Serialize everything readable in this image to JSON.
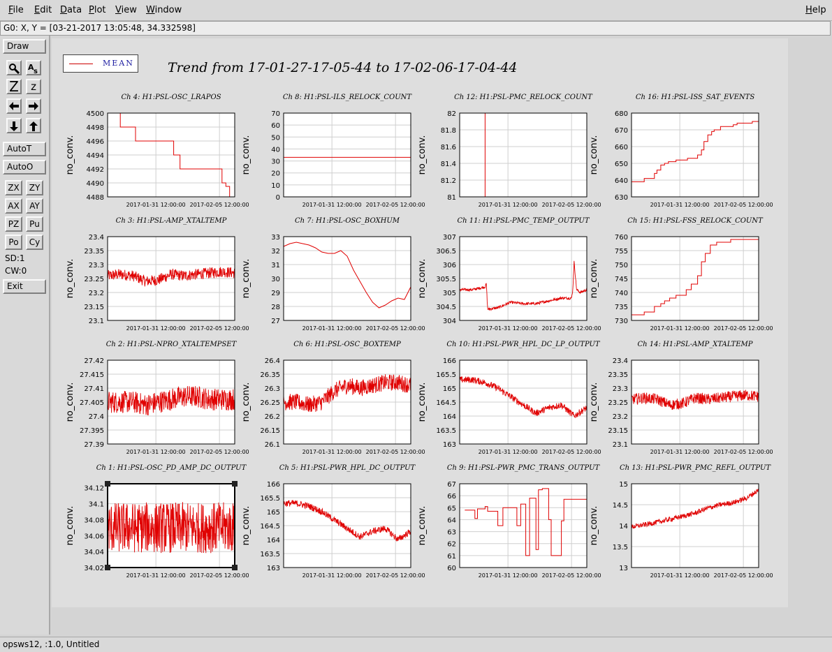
{
  "menubar": {
    "items": [
      {
        "label": "File",
        "ul": "F"
      },
      {
        "label": "Edit",
        "ul": "E"
      },
      {
        "label": "Data",
        "ul": "D"
      },
      {
        "label": "Plot",
        "ul": "P"
      },
      {
        "label": "View",
        "ul": "V"
      },
      {
        "label": "Window",
        "ul": "W"
      }
    ],
    "help": "Help"
  },
  "coord_readout": "G0: X, Y = [03-21-2017 13:05:48, 34.332598]",
  "toolbar": {
    "draw": "Draw",
    "autot": "AutoT",
    "autoo": "AutoO",
    "zx": "ZX",
    "zy": "ZY",
    "ax": "AX",
    "ay": "AY",
    "pz": "PZ",
    "pu": "Pu",
    "po": "Po",
    "cy": "Cy",
    "zoom_big": "Z",
    "zoom_small": "z",
    "sd": "SD:1",
    "cw": "CW:0",
    "exit": "Exit"
  },
  "legend": {
    "label": "MEAN",
    "color": "#cc0000"
  },
  "title": "Trend from 17-01-27-17-05-44 to 17-02-06-17-04-44",
  "statusbar": "opsws12, :1.0, Untitled",
  "chart_data": [
    {
      "type": "line",
      "title": "Ch 4: H1:PSL-OSC_LRAPOS",
      "ylabel": "no_conv.",
      "xticks": [
        "2017-01-31 12:00:00",
        "2017-02-05 12:00:00"
      ],
      "yticks": [
        "4488",
        "4490",
        "4492",
        "4494",
        "4496",
        "4498",
        "4500"
      ],
      "ylim": [
        4488,
        4500
      ],
      "series": [
        {
          "x": [
            0.08,
            0.1,
            0.1,
            0.22,
            0.22,
            0.52,
            0.52,
            0.57,
            0.57,
            0.9,
            0.9,
            0.93,
            0.93,
            0.96,
            0.96
          ],
          "y": [
            4500,
            4500,
            4498,
            4498,
            4496,
            4496,
            4494,
            4494,
            4492,
            4492,
            4490,
            4490,
            4489.5,
            4489.5,
            4488
          ]
        }
      ]
    },
    {
      "type": "line",
      "title": "Ch 8: H1:PSL-ILS_RELOCK_COUNT",
      "ylabel": "no_conv.",
      "xticks": [
        "2017-01-31 12:00:00",
        "2017-02-05 12:00:00"
      ],
      "yticks": [
        "0",
        "10",
        "20",
        "30",
        "40",
        "50",
        "60",
        "70"
      ],
      "ylim": [
        0,
        70
      ],
      "series": [
        {
          "x": [
            0,
            1
          ],
          "y": [
            33,
            33
          ]
        }
      ]
    },
    {
      "type": "line",
      "title": "Ch 12: H1:PSL-PMC_RELOCK_COUNT",
      "ylabel": "no_conv.",
      "xticks": [
        "2017-01-31 12:00:00",
        "2017-02-05 12:00:00"
      ],
      "yticks": [
        "81",
        "81.2",
        "81.4",
        "81.6",
        "81.8",
        "82"
      ],
      "ylim": [
        81,
        82
      ],
      "series": [
        {
          "x": [
            0.2,
            0.2
          ],
          "y": [
            81,
            82
          ]
        }
      ]
    },
    {
      "type": "line",
      "title": "Ch 16: H1:PSL-ISS_SAT_EVENTS",
      "ylabel": "no_conv.",
      "xticks": [
        "2017-01-31 12:00:00",
        "2017-02-05 12:00:00"
      ],
      "yticks": [
        "630",
        "640",
        "650",
        "660",
        "670",
        "680"
      ],
      "ylim": [
        630,
        680
      ],
      "series": [
        {
          "x": [
            0,
            0.1,
            0.1,
            0.18,
            0.18,
            0.2,
            0.2,
            0.23,
            0.23,
            0.26,
            0.26,
            0.29,
            0.29,
            0.35,
            0.35,
            0.44,
            0.44,
            0.52,
            0.52,
            0.55,
            0.55,
            0.57,
            0.57,
            0.6,
            0.6,
            0.63,
            0.63,
            0.65,
            0.65,
            0.7,
            0.7,
            0.8,
            0.8,
            0.83,
            0.83,
            0.95,
            0.95,
            1
          ],
          "y": [
            639,
            639,
            641,
            641,
            644,
            644,
            646,
            646,
            649,
            649,
            650,
            650,
            651,
            651,
            652,
            652,
            653,
            653,
            655,
            655,
            658,
            658,
            663,
            663,
            667,
            667,
            669,
            669,
            670,
            670,
            672,
            672,
            673,
            673,
            674,
            674,
            675,
            675
          ]
        }
      ]
    },
    {
      "type": "line",
      "title": "Ch 3: H1:PSL-AMP_XTALTEMP",
      "ylabel": "no_conv.",
      "xticks": [
        "2017-01-31 12:00:00",
        "2017-02-05 12:00:00"
      ],
      "yticks": [
        "23.1",
        "23.15",
        "23.2",
        "23.25",
        "23.3",
        "23.35",
        "23.4"
      ],
      "ylim": [
        23.1,
        23.4
      ],
      "series": [
        {
          "x": [
            0,
            0.1,
            0.2,
            0.3,
            0.4,
            0.5,
            0.6,
            0.7,
            0.8,
            0.9,
            1
          ],
          "y": [
            23.26,
            23.265,
            23.26,
            23.24,
            23.245,
            23.265,
            23.26,
            23.265,
            23.27,
            23.275,
            23.27
          ],
          "noise": 0.02
        }
      ]
    },
    {
      "type": "line",
      "title": "Ch 7: H1:PSL-OSC_BOXHUM",
      "ylabel": "no_conv.",
      "xticks": [
        "2017-01-31 12:00:00",
        "2017-02-05 12:00:00"
      ],
      "yticks": [
        "27",
        "28",
        "29",
        "30",
        "31",
        "32",
        "33"
      ],
      "ylim": [
        27,
        33
      ],
      "series": [
        {
          "x": [
            0,
            0.05,
            0.1,
            0.15,
            0.2,
            0.25,
            0.3,
            0.35,
            0.4,
            0.45,
            0.5,
            0.55,
            0.6,
            0.65,
            0.7,
            0.75,
            0.8,
            0.85,
            0.9,
            0.95,
            1
          ],
          "y": [
            32.3,
            32.5,
            32.6,
            32.5,
            32.4,
            32.2,
            31.9,
            31.8,
            31.8,
            32.0,
            31.6,
            30.6,
            29.8,
            29.0,
            28.3,
            27.9,
            28.1,
            28.4,
            28.6,
            28.5,
            29.4
          ]
        }
      ]
    },
    {
      "type": "line",
      "title": "Ch 11: H1:PSL-PMC_TEMP_OUTPUT",
      "ylabel": "no_conv.",
      "xticks": [
        "2017-01-31 12:00:00",
        "2017-02-05 12:00:00"
      ],
      "yticks": [
        "304",
        "304.5",
        "305",
        "305.5",
        "306",
        "306.5",
        "307"
      ],
      "ylim": [
        304,
        307
      ],
      "series": [
        {
          "x": [
            0,
            0.1,
            0.2,
            0.21,
            0.22,
            0.3,
            0.4,
            0.5,
            0.6,
            0.7,
            0.8,
            0.88,
            0.89,
            0.9,
            0.92,
            0.95,
            1
          ],
          "y": [
            305.1,
            305.1,
            305.2,
            305.3,
            304.4,
            304.45,
            304.65,
            304.6,
            304.6,
            304.7,
            304.8,
            304.8,
            305.1,
            306.1,
            305.1,
            305.0,
            305.1
          ],
          "noise": 0.05
        }
      ]
    },
    {
      "type": "line",
      "title": "Ch 15: H1:PSL-FSS_RELOCK_COUNT",
      "ylabel": "no_conv.",
      "xticks": [
        "2017-01-31 12:00:00",
        "2017-02-05 12:00:00"
      ],
      "yticks": [
        "730",
        "735",
        "740",
        "745",
        "750",
        "755",
        "760"
      ],
      "ylim": [
        730,
        760
      ],
      "series": [
        {
          "x": [
            0,
            0.1,
            0.1,
            0.18,
            0.18,
            0.23,
            0.23,
            0.26,
            0.26,
            0.3,
            0.3,
            0.35,
            0.35,
            0.43,
            0.43,
            0.47,
            0.47,
            0.52,
            0.52,
            0.55,
            0.55,
            0.58,
            0.58,
            0.62,
            0.62,
            0.67,
            0.67,
            0.78,
            0.78,
            0.95,
            0.95,
            1
          ],
          "y": [
            732,
            732,
            733,
            733,
            735,
            735,
            736,
            736,
            737,
            737,
            738,
            738,
            739,
            739,
            741,
            741,
            743,
            743,
            746,
            746,
            751,
            751,
            754,
            754,
            757,
            757,
            758,
            758,
            759,
            759,
            759,
            759
          ]
        }
      ]
    },
    {
      "type": "line",
      "title": "Ch 2: H1:PSL-NPRO_XTALTEMPSET",
      "ylabel": "no_conv.",
      "xticks": [
        "2017-01-31 12:00:00",
        "2017-02-05 12:00:00"
      ],
      "yticks": [
        "27.39",
        "27.395",
        "27.4",
        "27.405",
        "27.41",
        "27.415",
        "27.42"
      ],
      "ylim": [
        27.39,
        27.42
      ],
      "series": [
        {
          "x": [
            0,
            0.1,
            0.2,
            0.3,
            0.4,
            0.5,
            0.6,
            0.7,
            0.8,
            0.9,
            1
          ],
          "y": [
            27.405,
            27.405,
            27.405,
            27.404,
            27.405,
            27.406,
            27.407,
            27.407,
            27.406,
            27.406,
            27.406
          ],
          "noise": 0.004
        }
      ]
    },
    {
      "type": "line",
      "title": "Ch 6: H1:PSL-OSC_BOXTEMP",
      "ylabel": "no_conv.",
      "xticks": [
        "2017-01-31 12:00:00",
        "2017-02-05 12:00:00"
      ],
      "yticks": [
        "26.1",
        "26.15",
        "26.2",
        "26.25",
        "26.3",
        "26.35",
        "26.4"
      ],
      "ylim": [
        26.1,
        26.4
      ],
      "series": [
        {
          "x": [
            0,
            0.1,
            0.2,
            0.3,
            0.4,
            0.5,
            0.6,
            0.7,
            0.8,
            0.9,
            1
          ],
          "y": [
            26.25,
            26.25,
            26.24,
            26.25,
            26.29,
            26.31,
            26.3,
            26.31,
            26.32,
            26.32,
            26.31
          ],
          "noise": 0.03
        }
      ]
    },
    {
      "type": "line",
      "title": "Ch 10: H1:PSL-PWR_HPL_DC_LP_OUTPUT",
      "ylabel": "no_conv.",
      "xticks": [
        "2017-01-31 12:00:00",
        "2017-02-05 12:00:00"
      ],
      "yticks": [
        "163",
        "163.5",
        "164",
        "164.5",
        "165",
        "165.5",
        "166"
      ],
      "ylim": [
        163,
        166
      ],
      "series": [
        {
          "x": [
            0,
            0.1,
            0.2,
            0.3,
            0.4,
            0.5,
            0.6,
            0.7,
            0.8,
            0.9,
            1
          ],
          "y": [
            165.3,
            165.3,
            165.2,
            165.0,
            164.7,
            164.4,
            164.1,
            164.3,
            164.4,
            164.0,
            164.3
          ],
          "noise": 0.12
        }
      ]
    },
    {
      "type": "line",
      "title": "Ch 14: H1:PSL-AMP_XTALTEMP",
      "ylabel": "no_conv.",
      "xticks": [
        "2017-01-31 12:00:00",
        "2017-02-05 12:00:00"
      ],
      "yticks": [
        "23.1",
        "23.15",
        "23.2",
        "23.25",
        "23.3",
        "23.35",
        "23.4"
      ],
      "ylim": [
        23.1,
        23.4
      ],
      "series": [
        {
          "x": [
            0,
            0.1,
            0.2,
            0.3,
            0.4,
            0.5,
            0.6,
            0.7,
            0.8,
            0.9,
            1
          ],
          "y": [
            23.26,
            23.265,
            23.26,
            23.24,
            23.245,
            23.265,
            23.26,
            23.265,
            23.27,
            23.275,
            23.27
          ],
          "noise": 0.02
        }
      ]
    },
    {
      "type": "line",
      "title": "Ch 1: H1:PSL-OSC_PD_AMP_DC_OUTPUT",
      "ylabel": "no_conv.",
      "xticks": [
        "2017-01-31 12:00:00",
        "2017-02-05 12:00:00"
      ],
      "yticks": [
        "34.02",
        "34.04",
        "34.06",
        "34.08",
        "34.1",
        "34.12"
      ],
      "ylim": [
        34.02,
        34.125
      ],
      "series": [
        {
          "x": [
            0,
            0.1,
            0.2,
            0.3,
            0.4,
            0.5,
            0.6,
            0.7,
            0.8,
            0.9,
            1
          ],
          "y": [
            34.07,
            34.07,
            34.07,
            34.07,
            34.07,
            34.07,
            34.07,
            34.07,
            34.07,
            34.07,
            34.07
          ],
          "noise": 0.032
        }
      ]
    },
    {
      "type": "line",
      "title": "Ch 5: H1:PSL-PWR_HPL_DC_OUTPUT",
      "ylabel": "no_conv.",
      "xticks": [
        "2017-01-31 12:00:00",
        "2017-02-05 12:00:00"
      ],
      "yticks": [
        "163",
        "163.5",
        "164",
        "164.5",
        "165",
        "165.5",
        "166"
      ],
      "ylim": [
        163,
        166
      ],
      "series": [
        {
          "x": [
            0,
            0.1,
            0.2,
            0.3,
            0.4,
            0.5,
            0.6,
            0.7,
            0.8,
            0.9,
            1
          ],
          "y": [
            165.3,
            165.3,
            165.2,
            165.0,
            164.7,
            164.4,
            164.1,
            164.3,
            164.4,
            164.0,
            164.3
          ],
          "noise": 0.12
        }
      ]
    },
    {
      "type": "line",
      "title": "Ch 9: H1:PSL-PWR_PMC_TRANS_OUTPUT",
      "ylabel": "no_conv.",
      "xticks": [
        "2017-01-31 12:00:00",
        "2017-02-05 12:00:00"
      ],
      "yticks": [
        "60",
        "61",
        "62",
        "63",
        "64",
        "65",
        "66",
        "67"
      ],
      "ylim": [
        60,
        67
      ],
      "series": [
        {
          "x": [
            0.04,
            0.12,
            0.12,
            0.14,
            0.14,
            0.2,
            0.2,
            0.22,
            0.22,
            0.3,
            0.3,
            0.34,
            0.34,
            0.45,
            0.45,
            0.48,
            0.48,
            0.52,
            0.52,
            0.55,
            0.55,
            0.6,
            0.6,
            0.62,
            0.62,
            0.65,
            0.65,
            0.7,
            0.7,
            0.72,
            0.72,
            0.8,
            0.8,
            0.82,
            0.82,
            0.95,
            0.95,
            1
          ],
          "y": [
            64.8,
            64.8,
            64.1,
            64.1,
            64.9,
            64.9,
            65.1,
            65.1,
            64.7,
            64.7,
            63.5,
            63.5,
            65.0,
            65.0,
            63.5,
            63.5,
            65.3,
            65.3,
            61.0,
            61.0,
            65.8,
            65.8,
            61.5,
            61.5,
            66.5,
            66.5,
            66.6,
            66.6,
            64.0,
            64.0,
            61.0,
            61.0,
            63.9,
            63.9,
            65.7,
            65.7,
            65.7,
            65.7
          ]
        }
      ]
    },
    {
      "type": "line",
      "title": "Ch 13: H1:PSL-PWR_PMC_REFL_OUTPUT",
      "ylabel": "no_conv.",
      "xticks": [
        "2017-01-31 12:00:00",
        "2017-02-05 12:00:00"
      ],
      "yticks": [
        "13",
        "13.5",
        "14",
        "14.5",
        "15"
      ],
      "ylim": [
        13,
        15
      ],
      "series": [
        {
          "x": [
            0,
            0.1,
            0.2,
            0.3,
            0.4,
            0.5,
            0.6,
            0.7,
            0.8,
            0.9,
            1
          ],
          "y": [
            13.97,
            14.02,
            14.08,
            14.15,
            14.22,
            14.3,
            14.42,
            14.5,
            14.55,
            14.65,
            14.85
          ],
          "noise": 0.06
        }
      ]
    }
  ]
}
